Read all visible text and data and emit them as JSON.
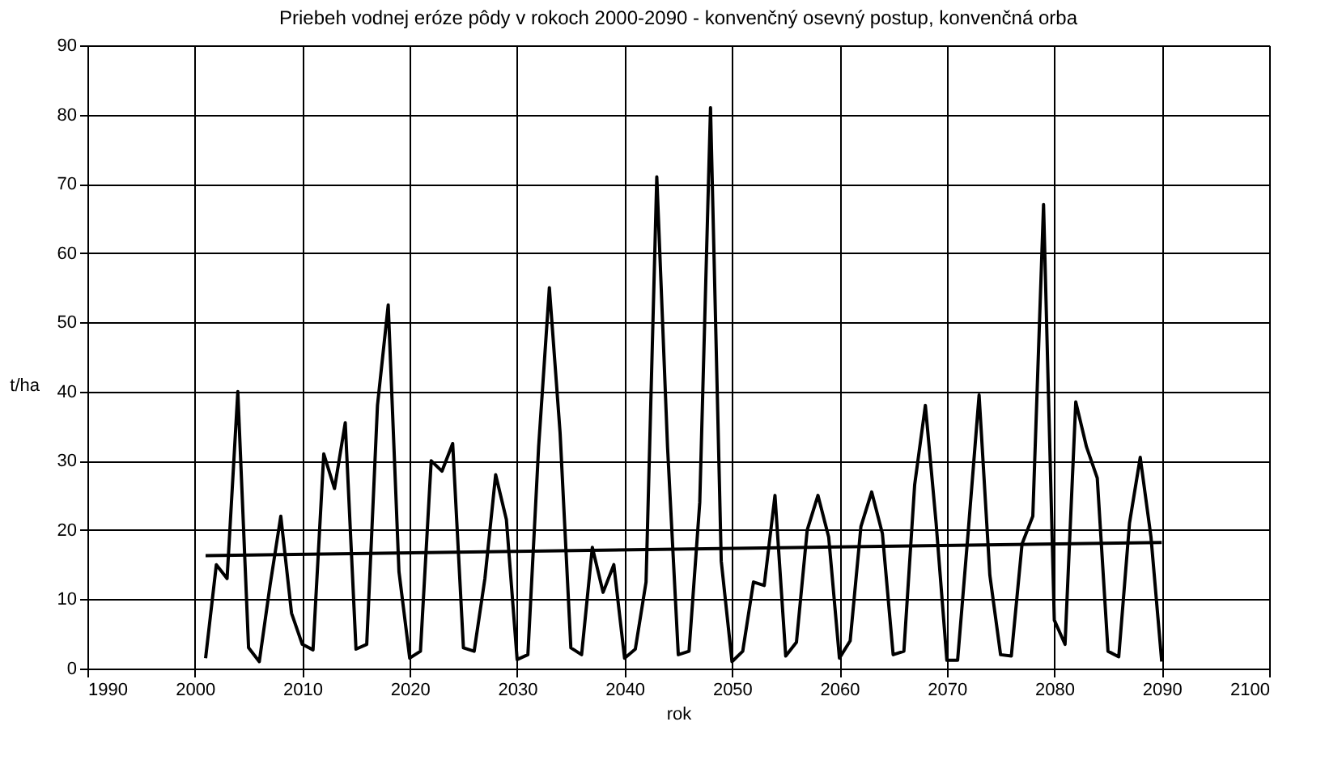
{
  "chart_data": {
    "type": "line",
    "title": "Priebeh vodnej eróze pôdy v rokoch 2000-2090 - konvenčný osevný postup, konvenčná orba",
    "xlabel": "rok",
    "ylabel": "t/ha",
    "x": [
      2001,
      2002,
      2003,
      2004,
      2005,
      2006,
      2007,
      2008,
      2009,
      2010,
      2011,
      2012,
      2013,
      2014,
      2015,
      2016,
      2017,
      2018,
      2019,
      2020,
      2021,
      2022,
      2023,
      2024,
      2025,
      2026,
      2027,
      2028,
      2029,
      2030,
      2031,
      2032,
      2033,
      2034,
      2035,
      2036,
      2037,
      2038,
      2039,
      2040,
      2041,
      2042,
      2043,
      2044,
      2045,
      2046,
      2047,
      2048,
      2049,
      2050,
      2051,
      2052,
      2053,
      2054,
      2055,
      2056,
      2057,
      2058,
      2059,
      2060,
      2061,
      2062,
      2063,
      2064,
      2065,
      2066,
      2067,
      2068,
      2069,
      2070,
      2071,
      2072,
      2073,
      2074,
      2075,
      2076,
      2077,
      2078,
      2079,
      2080,
      2081,
      2082,
      2083,
      2084,
      2085,
      2086,
      2087,
      2088,
      2089,
      2090
    ],
    "series": [
      {
        "color": "#000000",
        "values": [
          1.5,
          15,
          13,
          40,
          3,
          1,
          12,
          22,
          8,
          3.5,
          2.7,
          31,
          26,
          35.5,
          2.8,
          3.5,
          38,
          52.5,
          14,
          1.5,
          2.5,
          30,
          28.5,
          32.5,
          3,
          2.5,
          13,
          28,
          21.5,
          1.3,
          2,
          32,
          55,
          34,
          3,
          2,
          17.5,
          11,
          15,
          1.5,
          2.8,
          12.5,
          71,
          32,
          2,
          2.5,
          24,
          81,
          15.5,
          1,
          2.5,
          12.5,
          12,
          25,
          1.8,
          3.8,
          20,
          25,
          19,
          1.5,
          4,
          20.5,
          25.5,
          19.5,
          2,
          2.5,
          26.5,
          38,
          21,
          1.2,
          1.2,
          20,
          39.5,
          13.5,
          2,
          1.8,
          18,
          22,
          67,
          7,
          3.5,
          38.5,
          32,
          27.5,
          2.5,
          1.7,
          21,
          30.5,
          19,
          1
        ]
      },
      {
        "type": "line",
        "color": "#000000",
        "x": [
          2001,
          2090
        ],
        "values": [
          16.3,
          18.2
        ]
      }
    ],
    "xlim": [
      1990,
      2100
    ],
    "xticks": [
      1990,
      2000,
      2010,
      2020,
      2030,
      2040,
      2050,
      2060,
      2070,
      2080,
      2090,
      2100
    ],
    "ylim": [
      0,
      90
    ],
    "yticks": [
      0,
      10,
      20,
      30,
      40,
      50,
      60,
      70,
      80,
      90
    ],
    "grid": true,
    "marker": "none",
    "line_style": "solid"
  }
}
